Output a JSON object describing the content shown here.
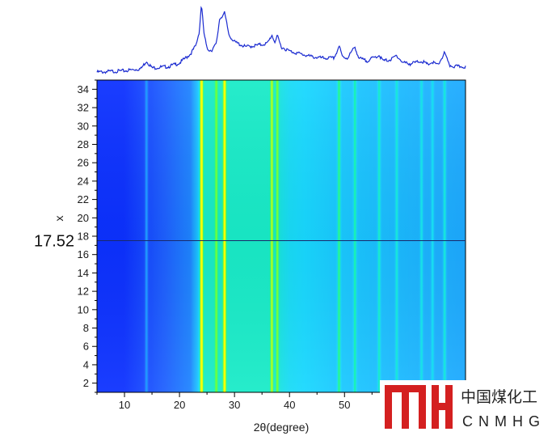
{
  "chart_data": {
    "type": "heatmap",
    "title": "",
    "xlabel": "2θ(degree)",
    "ylabel": "x",
    "xlim": [
      5,
      72
    ],
    "ylim": [
      1,
      35
    ],
    "x_ticks": [
      10,
      20,
      30,
      40,
      50
    ],
    "y_ticks": [
      2,
      4,
      6,
      8,
      10,
      12,
      14,
      16,
      18,
      20,
      22,
      24,
      26,
      28,
      30,
      32,
      34
    ],
    "cursor_line_y": 17.52,
    "cursor_readout": "17.52",
    "colormap": [
      "#0a2bff",
      "#1e60ff",
      "#1ea0ff",
      "#18d8ff",
      "#19f2b2",
      "#4dff4d",
      "#ffff00"
    ],
    "peaks_2theta": [
      {
        "x": 14.0,
        "intensity": 0.3
      },
      {
        "x": 24.0,
        "intensity": 0.95
      },
      {
        "x": 26.7,
        "intensity": 0.35
      },
      {
        "x": 28.2,
        "intensity": 0.85
      },
      {
        "x": 36.8,
        "intensity": 0.5
      },
      {
        "x": 37.8,
        "intensity": 0.45
      },
      {
        "x": 49.0,
        "intensity": 0.38
      },
      {
        "x": 51.9,
        "intensity": 0.3
      },
      {
        "x": 56.3,
        "intensity": 0.25
      },
      {
        "x": 59.5,
        "intensity": 0.22
      },
      {
        "x": 64.0,
        "intensity": 0.2
      },
      {
        "x": 66.0,
        "intensity": 0.18
      },
      {
        "x": 68.2,
        "intensity": 0.28
      }
    ],
    "top_profile": {
      "x": [
        5,
        10,
        13,
        14,
        15,
        18,
        20,
        22,
        23,
        23.6,
        24.0,
        24.4,
        25,
        25.8,
        26.7,
        27.3,
        28.2,
        29.0,
        30,
        32,
        34,
        36,
        36.8,
        37.3,
        37.8,
        38.5,
        40,
        42,
        44,
        46,
        48,
        48.6,
        49.0,
        49.6,
        50.5,
        51.9,
        52.6,
        54,
        56.3,
        57,
        58.5,
        59.5,
        60.5,
        62,
        64,
        65,
        66,
        67,
        68.2,
        69,
        70,
        72
      ],
      "y": [
        0.02,
        0.04,
        0.07,
        0.18,
        0.08,
        0.1,
        0.15,
        0.28,
        0.4,
        0.6,
        1.0,
        0.6,
        0.35,
        0.33,
        0.42,
        0.78,
        0.86,
        0.55,
        0.45,
        0.38,
        0.4,
        0.43,
        0.55,
        0.45,
        0.53,
        0.38,
        0.32,
        0.28,
        0.24,
        0.22,
        0.22,
        0.3,
        0.4,
        0.24,
        0.22,
        0.38,
        0.22,
        0.18,
        0.26,
        0.18,
        0.2,
        0.26,
        0.16,
        0.14,
        0.18,
        0.13,
        0.16,
        0.12,
        0.3,
        0.12,
        0.1,
        0.1
      ]
    }
  },
  "logo": {
    "cn_text": "中国煤化工",
    "en_text": "CNMHG"
  },
  "colors": {
    "profile_line": "#1a2ad0",
    "cursor_line": "#1a2a6a",
    "logo_red": "#d42020"
  }
}
